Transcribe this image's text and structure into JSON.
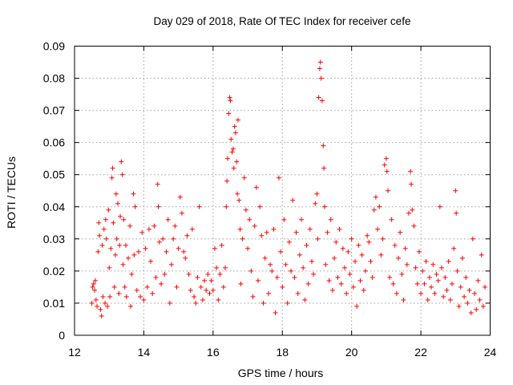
{
  "chart_data": {
    "type": "scatter",
    "title": "Day 029 of 2018, Rate Of TEC Index for receiver cefe",
    "xlabel": "GPS time / hours",
    "ylabel": "ROTI / TECUs",
    "xlim": [
      12,
      24
    ],
    "ylim": [
      0,
      0.09
    ],
    "xticks": [
      "12",
      "14",
      "16",
      "18",
      "20",
      "22",
      "24"
    ],
    "yticks": [
      "0",
      "0.01",
      "0.02",
      "0.03",
      "0.04",
      "0.05",
      "0.06",
      "0.07",
      "0.08",
      "0.09"
    ],
    "grid": true,
    "marker": "+",
    "color": "#ff0000",
    "series": [
      {
        "name": "ROTI",
        "points": [
          [
            12.5,
            0.01
          ],
          [
            12.52,
            0.015
          ],
          [
            12.55,
            0.016
          ],
          [
            12.58,
            0.014
          ],
          [
            12.6,
            0.017
          ],
          [
            12.62,
            0.011
          ],
          [
            12.65,
            0.009
          ],
          [
            12.68,
            0.026
          ],
          [
            12.7,
            0.035
          ],
          [
            12.72,
            0.031
          ],
          [
            12.75,
            0.008
          ],
          [
            12.78,
            0.006
          ],
          [
            12.8,
            0.028
          ],
          [
            12.82,
            0.012
          ],
          [
            12.85,
            0.033
          ],
          [
            12.88,
            0.01
          ],
          [
            12.9,
            0.036
          ],
          [
            12.92,
            0.03
          ],
          [
            12.95,
            0.009
          ],
          [
            12.98,
            0.039
          ],
          [
            13.0,
            0.021
          ],
          [
            13.02,
            0.012
          ],
          [
            13.05,
            0.027
          ],
          [
            13.08,
            0.049
          ],
          [
            13.1,
            0.052
          ],
          [
            13.12,
            0.035
          ],
          [
            13.15,
            0.015
          ],
          [
            13.18,
            0.025
          ],
          [
            13.2,
            0.044
          ],
          [
            13.22,
            0.03
          ],
          [
            13.25,
            0.041
          ],
          [
            13.28,
            0.013
          ],
          [
            13.3,
            0.028
          ],
          [
            13.32,
            0.037
          ],
          [
            13.35,
            0.054
          ],
          [
            13.38,
            0.05
          ],
          [
            13.4,
            0.022
          ],
          [
            13.42,
            0.036
          ],
          [
            13.45,
            0.015
          ],
          [
            13.48,
            0.028
          ],
          [
            13.5,
            0.012
          ],
          [
            13.55,
            0.024
          ],
          [
            13.6,
            0.034
          ],
          [
            13.62,
            0.009
          ],
          [
            13.65,
            0.019
          ],
          [
            13.7,
            0.044
          ],
          [
            13.72,
            0.025
          ],
          [
            13.75,
            0.04
          ],
          [
            13.8,
            0.014
          ],
          [
            13.85,
            0.026
          ],
          [
            13.9,
            0.012
          ],
          [
            13.95,
            0.032
          ],
          [
            14.0,
            0.011
          ],
          [
            14.05,
            0.027
          ],
          [
            14.1,
            0.015
          ],
          [
            14.15,
            0.033
          ],
          [
            14.2,
            0.023
          ],
          [
            14.25,
            0.013
          ],
          [
            14.3,
            0.034
          ],
          [
            14.35,
            0.018
          ],
          [
            14.4,
            0.047
          ],
          [
            14.42,
            0.04
          ],
          [
            14.45,
            0.029
          ],
          [
            14.5,
            0.016
          ],
          [
            14.55,
            0.03
          ],
          [
            14.6,
            0.019
          ],
          [
            14.65,
            0.026
          ],
          [
            14.7,
            0.036
          ],
          [
            14.75,
            0.01
          ],
          [
            14.8,
            0.022
          ],
          [
            14.85,
            0.03
          ],
          [
            14.9,
            0.034
          ],
          [
            14.95,
            0.015
          ],
          [
            15.0,
            0.027
          ],
          [
            15.05,
            0.043
          ],
          [
            15.1,
            0.038
          ],
          [
            15.15,
            0.026
          ],
          [
            15.2,
            0.024
          ],
          [
            15.25,
            0.031
          ],
          [
            15.3,
            0.019
          ],
          [
            15.35,
            0.014
          ],
          [
            15.4,
            0.033
          ],
          [
            15.45,
            0.012
          ],
          [
            15.5,
            0.01
          ],
          [
            15.55,
            0.018
          ],
          [
            15.6,
            0.04
          ],
          [
            15.65,
            0.015
          ],
          [
            15.7,
            0.011
          ],
          [
            15.75,
            0.017
          ],
          [
            15.8,
            0.014
          ],
          [
            15.85,
            0.019
          ],
          [
            15.9,
            0.013
          ],
          [
            15.95,
            0.017
          ],
          [
            16.0,
            0.014
          ],
          [
            16.05,
            0.027
          ],
          [
            16.1,
            0.021
          ],
          [
            16.15,
            0.011
          ],
          [
            16.2,
            0.019
          ],
          [
            16.25,
            0.028
          ],
          [
            16.3,
            0.015
          ],
          [
            16.35,
            0.021
          ],
          [
            16.38,
            0.04
          ],
          [
            16.4,
            0.048
          ],
          [
            16.42,
            0.055
          ],
          [
            16.45,
            0.069
          ],
          [
            16.48,
            0.074
          ],
          [
            16.5,
            0.073
          ],
          [
            16.52,
            0.061
          ],
          [
            16.55,
            0.057
          ],
          [
            16.58,
            0.058
          ],
          [
            16.6,
            0.052
          ],
          [
            16.62,
            0.065
          ],
          [
            16.65,
            0.063
          ],
          [
            16.68,
            0.054
          ],
          [
            16.7,
            0.044
          ],
          [
            16.72,
            0.067
          ],
          [
            16.75,
            0.042
          ],
          [
            16.78,
            0.033
          ],
          [
            16.8,
            0.016
          ],
          [
            16.85,
            0.03
          ],
          [
            16.9,
            0.049
          ],
          [
            16.95,
            0.039
          ],
          [
            17.0,
            0.027
          ],
          [
            17.05,
            0.036
          ],
          [
            17.1,
            0.02
          ],
          [
            17.15,
            0.012
          ],
          [
            17.2,
            0.034
          ],
          [
            17.25,
            0.046
          ],
          [
            17.3,
            0.017
          ],
          [
            17.35,
            0.04
          ],
          [
            17.4,
            0.031
          ],
          [
            17.45,
            0.01
          ],
          [
            17.5,
            0.024
          ],
          [
            17.55,
            0.032
          ],
          [
            17.6,
            0.013
          ],
          [
            17.65,
            0.022
          ],
          [
            17.7,
            0.02
          ],
          [
            17.75,
            0.033
          ],
          [
            17.8,
            0.007
          ],
          [
            17.85,
            0.018
          ],
          [
            17.9,
            0.049
          ],
          [
            17.95,
            0.026
          ],
          [
            18.0,
            0.015
          ],
          [
            18.05,
            0.036
          ],
          [
            18.1,
            0.022
          ],
          [
            18.15,
            0.01
          ],
          [
            18.2,
            0.029
          ],
          [
            18.25,
            0.02
          ],
          [
            18.3,
            0.042
          ],
          [
            18.35,
            0.018
          ],
          [
            18.4,
            0.032
          ],
          [
            18.45,
            0.013
          ],
          [
            18.5,
            0.025
          ],
          [
            18.55,
            0.036
          ],
          [
            18.6,
            0.021
          ],
          [
            18.65,
            0.011
          ],
          [
            18.7,
            0.028
          ],
          [
            18.75,
            0.016
          ],
          [
            18.8,
            0.033
          ],
          [
            18.85,
            0.023
          ],
          [
            18.9,
            0.019
          ],
          [
            18.95,
            0.041
          ],
          [
            19.0,
            0.044
          ],
          [
            19.02,
            0.03
          ],
          [
            19.05,
            0.074
          ],
          [
            19.08,
            0.083
          ],
          [
            19.1,
            0.085
          ],
          [
            19.12,
            0.08
          ],
          [
            19.15,
            0.073
          ],
          [
            19.18,
            0.059
          ],
          [
            19.2,
            0.052
          ],
          [
            19.22,
            0.04
          ],
          [
            19.25,
            0.022
          ],
          [
            19.3,
            0.032
          ],
          [
            19.35,
            0.017
          ],
          [
            19.4,
            0.036
          ],
          [
            19.45,
            0.014
          ],
          [
            19.5,
            0.024
          ],
          [
            19.55,
            0.029
          ],
          [
            19.6,
            0.018
          ],
          [
            19.65,
            0.033
          ],
          [
            19.7,
            0.016
          ],
          [
            19.75,
            0.027
          ],
          [
            19.8,
            0.021
          ],
          [
            19.85,
            0.013
          ],
          [
            19.9,
            0.026
          ],
          [
            19.95,
            0.019
          ],
          [
            20.0,
            0.03
          ],
          [
            20.05,
            0.015
          ],
          [
            20.1,
            0.023
          ],
          [
            20.15,
            0.009
          ],
          [
            20.2,
            0.028
          ],
          [
            20.25,
            0.017
          ],
          [
            20.3,
            0.025
          ],
          [
            20.35,
            0.014
          ],
          [
            20.4,
            0.02
          ],
          [
            20.45,
            0.031
          ],
          [
            20.5,
            0.029
          ],
          [
            20.55,
            0.023
          ],
          [
            20.6,
            0.018
          ],
          [
            20.65,
            0.039
          ],
          [
            20.7,
            0.043
          ],
          [
            20.75,
            0.033
          ],
          [
            20.8,
            0.04
          ],
          [
            20.85,
            0.025
          ],
          [
            20.9,
            0.03
          ],
          [
            20.95,
            0.053
          ],
          [
            21.0,
            0.055
          ],
          [
            21.02,
            0.051
          ],
          [
            21.05,
            0.045
          ],
          [
            21.1,
            0.018
          ],
          [
            21.15,
            0.036
          ],
          [
            21.2,
            0.016
          ],
          [
            21.25,
            0.028
          ],
          [
            21.3,
            0.013
          ],
          [
            21.35,
            0.024
          ],
          [
            21.4,
            0.032
          ],
          [
            21.45,
            0.019
          ],
          [
            21.5,
            0.011
          ],
          [
            21.55,
            0.027
          ],
          [
            21.6,
            0.022
          ],
          [
            21.65,
            0.038
          ],
          [
            21.7,
            0.051
          ],
          [
            21.72,
            0.047
          ],
          [
            21.75,
            0.039
          ],
          [
            21.8,
            0.034
          ],
          [
            21.85,
            0.021
          ],
          [
            21.9,
            0.016
          ],
          [
            21.95,
            0.026
          ],
          [
            22.0,
            0.013
          ],
          [
            22.05,
            0.02
          ],
          [
            22.1,
            0.016
          ],
          [
            22.15,
            0.023
          ],
          [
            22.2,
            0.011
          ],
          [
            22.25,
            0.018
          ],
          [
            22.3,
            0.015
          ],
          [
            22.35,
            0.022
          ],
          [
            22.4,
            0.013
          ],
          [
            22.45,
            0.019
          ],
          [
            22.5,
            0.017
          ],
          [
            22.55,
            0.04
          ],
          [
            22.6,
            0.021
          ],
          [
            22.65,
            0.012
          ],
          [
            22.7,
            0.018
          ],
          [
            22.75,
            0.014
          ],
          [
            22.8,
            0.023
          ],
          [
            22.85,
            0.011
          ],
          [
            22.9,
            0.016
          ],
          [
            22.95,
            0.027
          ],
          [
            23.0,
            0.045
          ],
          [
            23.02,
            0.038
          ],
          [
            23.05,
            0.02
          ],
          [
            23.1,
            0.009
          ],
          [
            23.15,
            0.015
          ],
          [
            23.2,
            0.024
          ],
          [
            23.25,
            0.012
          ],
          [
            23.3,
            0.018
          ],
          [
            23.35,
            0.01
          ],
          [
            23.4,
            0.014
          ],
          [
            23.45,
            0.007
          ],
          [
            23.5,
            0.03
          ],
          [
            23.55,
            0.013
          ],
          [
            23.6,
            0.008
          ],
          [
            23.65,
            0.017
          ],
          [
            23.7,
            0.011
          ],
          [
            23.75,
            0.025
          ],
          [
            23.8,
            0.009
          ],
          [
            23.85,
            0.015
          ]
        ]
      }
    ]
  }
}
